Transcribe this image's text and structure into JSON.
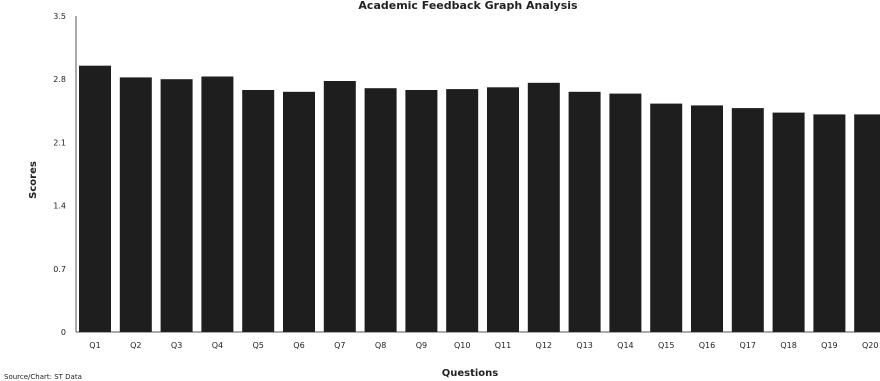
{
  "chart_data": {
    "type": "bar",
    "title": "Academic Feedback Graph Analysis",
    "xlabel": "Questions",
    "ylabel": "Scores",
    "categories": [
      "Q1",
      "Q2",
      "Q3",
      "Q4",
      "Q5",
      "Q6",
      "Q7",
      "Q8",
      "Q9",
      "Q10",
      "Q11",
      "Q12",
      "Q13",
      "Q14",
      "Q15",
      "Q16",
      "Q17",
      "Q18",
      "Q19",
      "Q20"
    ],
    "values": [
      2.95,
      2.82,
      2.8,
      2.83,
      2.68,
      2.66,
      2.78,
      2.7,
      2.68,
      2.69,
      2.71,
      2.76,
      2.66,
      2.64,
      2.53,
      2.51,
      2.48,
      2.43,
      2.41,
      2.41
    ],
    "ylim": [
      0,
      3.5
    ],
    "yticks": [
      "0",
      "0.7",
      "1.4",
      "2.1",
      "2.8",
      "3.5"
    ],
    "grid": false,
    "legend": false,
    "bar_color": "#1e1e1e"
  },
  "footer": {
    "source_note": "Source/Chart: ST Data"
  }
}
